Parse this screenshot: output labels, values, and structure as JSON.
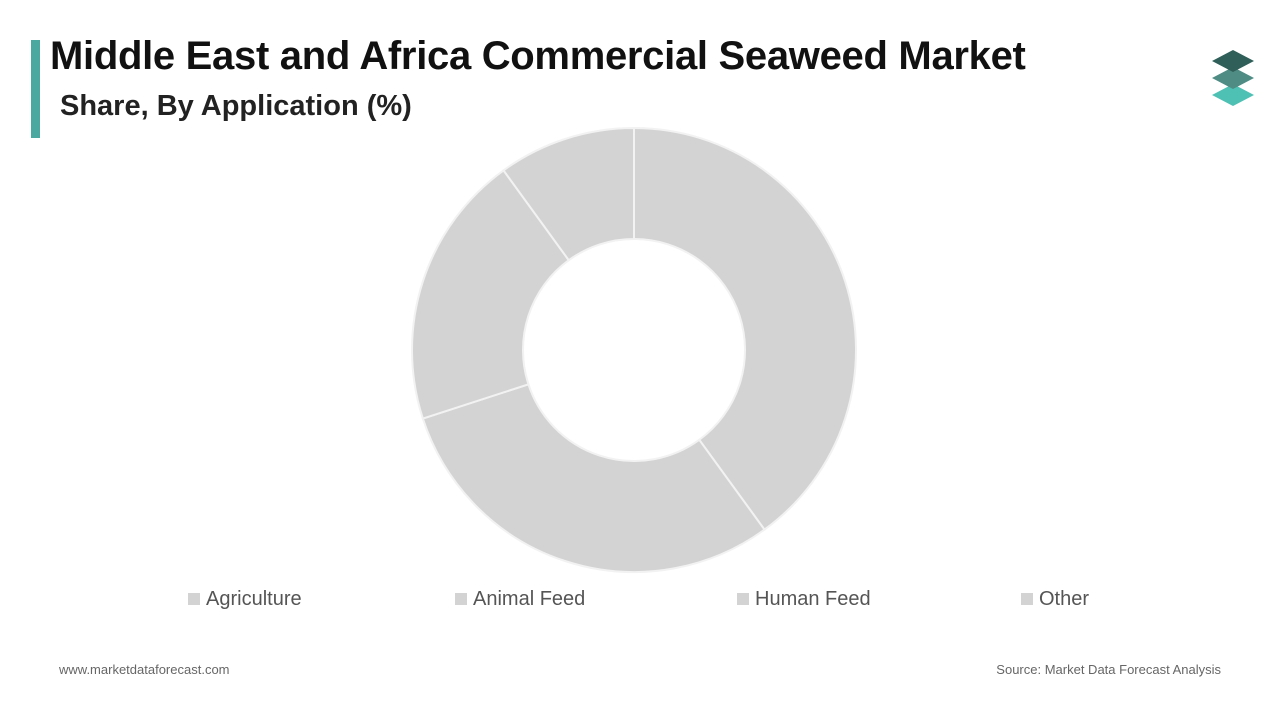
{
  "header": {
    "title": "Middle East and Africa Commercial Seaweed Market",
    "subtitle": "Share, By Application (%)",
    "accent_color": "#4aa8a0"
  },
  "logo": {
    "icon": "layered-stack-icon",
    "colors": [
      "#2f5f58",
      "#4f8c84",
      "#4fc0b4"
    ]
  },
  "chart_data": {
    "type": "pie",
    "variant": "donut",
    "categories": [
      "Agriculture",
      "Animal Feed",
      "Human Feed",
      "Other"
    ],
    "values": [
      40,
      30,
      20,
      10
    ],
    "colors": [
      "#d4d3d4",
      "#d4d3d4",
      "#d4d3d4",
      "#d4d3d4"
    ],
    "slice_border_color": "#f2f2f2",
    "legend_position": "bottom",
    "title": "Middle East and Africa Commercial Seaweed Market",
    "subtitle": "Share, By Application (%)"
  },
  "footer": {
    "website": "www.marketdataforecast.com",
    "source": "Source: Market Data Forecast Analysis"
  }
}
